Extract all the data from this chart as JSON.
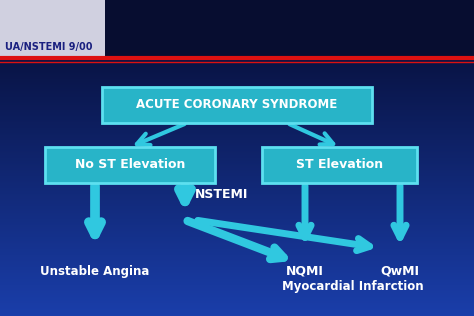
{
  "bg_top_color": "#050a2e",
  "bg_bottom_color": "#1a3eaa",
  "box_face": "#28b4c8",
  "box_edge": "#5de0f0",
  "box_text_color": "#ffffff",
  "arrow_color": "#30c8e0",
  "title": "ACUTE CORONARY SYNDROME",
  "left_box": "No ST Elevation",
  "right_box": "ST Elevation",
  "label_ua": "Unstable Angina",
  "label_nstemi": "NSTEMI",
  "label_nqmi": "NQMI",
  "label_qwmi": "QwMI",
  "label_mi": "Myocardial Infarction",
  "header_text": "UA/NSTEMI 9/00",
  "red_line_color": "#dd1111",
  "header_bg": "#070d30",
  "header_white_bg": "#d0d0e0",
  "figw": 4.74,
  "figh": 3.16,
  "dpi": 100
}
